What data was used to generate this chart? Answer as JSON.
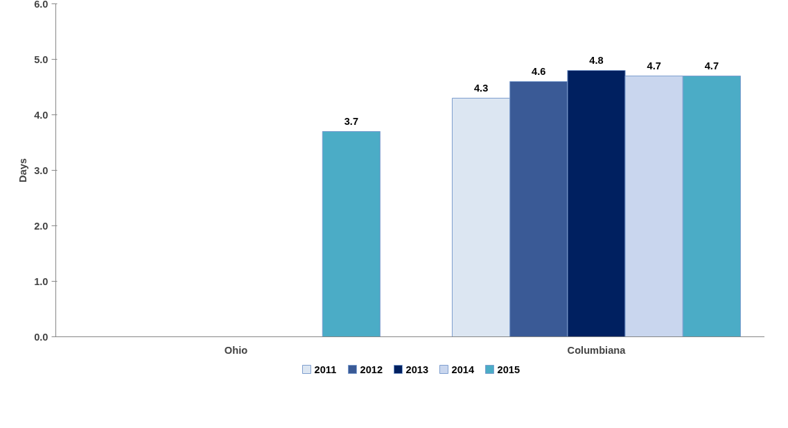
{
  "chart_data": {
    "type": "bar",
    "ylabel": "Days",
    "categories": [
      "Ohio",
      "Columbiana"
    ],
    "series": [
      {
        "name": "2011",
        "color": "#dce6f2",
        "values": [
          null,
          4.3
        ]
      },
      {
        "name": "2012",
        "color": "#3a5a96",
        "values": [
          null,
          4.6
        ]
      },
      {
        "name": "2013",
        "color": "#002060",
        "values": [
          null,
          4.8
        ]
      },
      {
        "name": "2014",
        "color": "#c9d6ee",
        "values": [
          null,
          4.7
        ]
      },
      {
        "name": "2015",
        "color": "#4bacc6",
        "values": [
          3.7,
          4.7
        ]
      }
    ],
    "ylim": [
      0,
      6
    ],
    "yticks": [
      {
        "value": 0,
        "label": "0.0"
      },
      {
        "value": 1,
        "label": "1.0"
      },
      {
        "value": 2,
        "label": "2.0"
      },
      {
        "value": 3,
        "label": "3.0"
      },
      {
        "value": 4,
        "label": "4.0"
      },
      {
        "value": 5,
        "label": "5.0"
      },
      {
        "value": 6,
        "label": "6.0"
      }
    ],
    "data_labels": true,
    "grid": false,
    "legend": "bottom"
  }
}
